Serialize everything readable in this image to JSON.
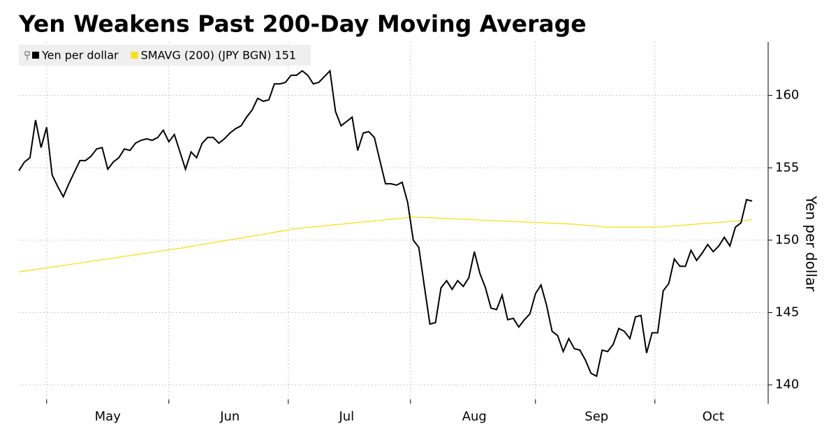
{
  "chart_data": {
    "type": "line",
    "title": "Yen Weakens Past 200-Day Moving Average",
    "y_label": "Yen per dollar",
    "categories": [
      null,
      null,
      null,
      null,
      null,
      null,
      null,
      null,
      null,
      null,
      null,
      null,
      null,
      null,
      null,
      null,
      "May",
      null,
      null,
      null,
      null,
      null,
      null,
      null,
      null,
      null,
      null,
      null,
      null,
      null,
      null,
      null,
      null,
      null,
      null,
      null,
      null,
      null,
      "Jun",
      null,
      null,
      null,
      null,
      null,
      null,
      null,
      null,
      null,
      null,
      null,
      null,
      null,
      null,
      null,
      null,
      null,
      null,
      null,
      null,
      "Jul",
      null,
      null,
      null,
      null,
      null,
      null,
      null,
      null,
      null,
      null,
      null,
      null,
      null,
      null,
      null,
      null,
      null,
      null,
      null,
      null,
      null,
      null,
      "Aug",
      null,
      null,
      null,
      null,
      null,
      null,
      null,
      null,
      null,
      null,
      null,
      null,
      null,
      null,
      null,
      null,
      null,
      null,
      null,
      null,
      null,
      "Sep",
      null,
      null,
      null,
      null,
      null,
      null,
      null,
      null,
      null,
      null,
      null,
      null,
      null,
      null,
      null,
      null,
      null,
      null,
      null,
      null,
      "Oct",
      null,
      null,
      null,
      null,
      null,
      null,
      null
    ],
    "series": [
      {
        "name": "Yen per dollar",
        "color": "#000000",
        "values": [
          154.8,
          155.4,
          155.7,
          158.3,
          156.4,
          157.8,
          154.5,
          153.7,
          153.0,
          153.9,
          154.7,
          155.5,
          155.5,
          155.8,
          156.3,
          156.4,
          154.9,
          155.4,
          155.7,
          156.3,
          156.2,
          156.7,
          156.9,
          157.0,
          156.9,
          157.1,
          157.6,
          156.8,
          157.3,
          156.1,
          154.9,
          156.1,
          155.7,
          156.7,
          157.1,
          157.1,
          156.7,
          157.0,
          157.4,
          157.7,
          157.9,
          158.5,
          159.0,
          159.8,
          159.6,
          159.7,
          160.8,
          160.8,
          160.9,
          161.4,
          161.4,
          161.7,
          161.4,
          160.8,
          160.9,
          161.3,
          161.7,
          158.9,
          157.9,
          158.2,
          158.5,
          156.2,
          157.4,
          157.5,
          157.1,
          155.5,
          153.9,
          153.9,
          153.8,
          154.0,
          152.6,
          150.0,
          149.5,
          146.8,
          144.2,
          144.3,
          146.7,
          147.2,
          146.6,
          147.2,
          146.8,
          147.4,
          149.2,
          147.7,
          146.7,
          145.3,
          145.2,
          146.2,
          144.5,
          144.6,
          144.0,
          144.5,
          144.9,
          146.3,
          146.9,
          145.5,
          143.7,
          143.4,
          142.3,
          143.2,
          142.5,
          142.4,
          141.7,
          140.8,
          140.6,
          142.4,
          142.3,
          142.8,
          143.9,
          143.7,
          143.2,
          144.7,
          144.8,
          142.2,
          143.6,
          143.6,
          146.5,
          147.0,
          148.7,
          148.2,
          148.2,
          149.3,
          148.6,
          149.1,
          149.7,
          149.2,
          149.6,
          150.2,
          149.6,
          150.9,
          151.2,
          152.8,
          152.7
        ]
      },
      {
        "name": "SMAVG (200) (JPY BGN) 151",
        "color": "#f3e21c",
        "values": [
          147.8,
          147.86,
          147.91,
          147.97,
          148.03,
          148.08,
          148.14,
          148.2,
          148.25,
          148.31,
          148.37,
          148.42,
          148.48,
          148.54,
          148.59,
          148.65,
          148.71,
          148.76,
          148.82,
          148.88,
          148.93,
          148.99,
          149.05,
          149.1,
          149.16,
          149.22,
          149.27,
          149.33,
          149.39,
          149.44,
          149.5,
          149.57,
          149.63,
          149.7,
          149.76,
          149.83,
          149.89,
          149.96,
          150.02,
          150.09,
          150.15,
          150.22,
          150.28,
          150.35,
          150.41,
          150.48,
          150.54,
          150.61,
          150.67,
          150.74,
          150.8,
          150.84,
          150.88,
          150.91,
          150.95,
          150.99,
          151.03,
          151.07,
          151.1,
          151.14,
          151.18,
          151.22,
          151.26,
          151.29,
          151.33,
          151.37,
          151.41,
          151.45,
          151.48,
          151.52,
          151.56,
          151.6,
          151.58,
          151.57,
          151.55,
          151.53,
          151.51,
          151.5,
          151.48,
          151.46,
          151.45,
          151.43,
          151.41,
          151.39,
          151.38,
          151.36,
          151.34,
          151.33,
          151.31,
          151.29,
          151.28,
          151.26,
          151.24,
          151.22,
          151.21,
          151.19,
          151.17,
          151.16,
          151.14,
          151.12,
          151.1,
          151.07,
          151.03,
          151.0,
          150.97,
          150.93,
          150.9,
          150.9,
          150.9,
          150.9,
          150.9,
          150.9,
          150.9,
          150.9,
          150.9,
          150.9,
          150.93,
          150.96,
          150.99,
          151.02,
          151.05,
          151.08,
          151.11,
          151.14,
          151.17,
          151.2,
          151.23,
          151.26,
          151.29,
          151.32,
          151.35,
          151.38,
          151.41
        ]
      }
    ],
    "ylim": [
      138.7,
      163.7
    ],
    "yticks": [
      140,
      145,
      150,
      155,
      160
    ],
    "grid": true,
    "legend": "top-left"
  }
}
